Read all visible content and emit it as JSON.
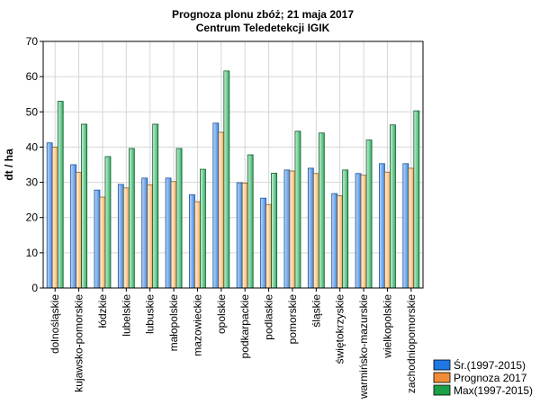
{
  "chart_data": {
    "type": "bar",
    "title": "Prognoza plonu zbóż; 21 maja 2017",
    "subtitle": "Centrum Teledetekcji IGIK",
    "ylabel": "dt / ha",
    "xlabel": "",
    "ylim": [
      0,
      70
    ],
    "yticks": [
      0,
      10,
      20,
      30,
      40,
      50,
      60,
      70
    ],
    "grid": true,
    "legend_position": "bottom-right",
    "categories": [
      "dolnośląskie",
      "kujawsko-pomorskie",
      "łódzkie",
      "lubelskie",
      "lubuskie",
      "małopolskie",
      "mazowieckie",
      "opolskie",
      "podkarpackie",
      "podlaskie",
      "pomorskie",
      "śląskie",
      "świętokrzyskie",
      "warmińsko-mazurskie",
      "wielkopolskie",
      "zachodniopomorskie"
    ],
    "series": [
      {
        "name": "Śr.(1997-2015)",
        "color": "#1e78e6",
        "values": [
          41.2,
          35.0,
          27.8,
          29.4,
          31.2,
          31.2,
          26.5,
          46.8,
          29.9,
          25.5,
          33.5,
          34.0,
          26.8,
          32.5,
          35.3,
          35.3
        ]
      },
      {
        "name": "Prognoza 2017",
        "color": "#f08c37",
        "values": [
          40.0,
          32.8,
          25.8,
          28.4,
          29.3,
          30.2,
          24.5,
          44.2,
          29.8,
          23.7,
          33.2,
          32.5,
          26.2,
          32.0,
          32.9,
          34.0
        ]
      },
      {
        "name": "Max(1997-2015)",
        "color": "#1ba048",
        "values": [
          53.0,
          46.5,
          37.3,
          39.6,
          46.5,
          39.6,
          33.7,
          61.6,
          37.8,
          32.6,
          44.5,
          44.0,
          33.5,
          42.0,
          46.3,
          50.3
        ]
      }
    ]
  }
}
